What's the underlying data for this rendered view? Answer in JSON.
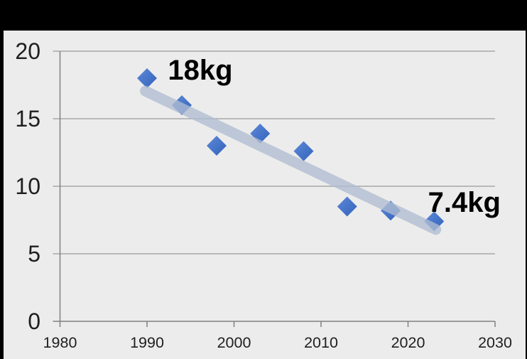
{
  "chart_data": {
    "type": "scatter",
    "title": "",
    "xlabel": "",
    "ylabel": "",
    "xlim": [
      1980,
      2030
    ],
    "ylim": [
      0,
      20
    ],
    "x_ticks": [
      1980,
      1990,
      2000,
      2010,
      2020,
      2030
    ],
    "y_ticks": [
      0,
      5,
      10,
      15,
      20
    ],
    "grid": true,
    "legend": "none",
    "series": [
      {
        "name": "values-kg",
        "marker": "diamond",
        "points": [
          {
            "x": 1990,
            "y": 18
          },
          {
            "x": 1994,
            "y": 16
          },
          {
            "x": 1998,
            "y": 13
          },
          {
            "x": 2003,
            "y": 13.9
          },
          {
            "x": 2008,
            "y": 12.6
          },
          {
            "x": 2013,
            "y": 8.5
          },
          {
            "x": 2018,
            "y": 8.2
          },
          {
            "x": 2023,
            "y": 7.4
          }
        ]
      }
    ],
    "trendline": {
      "x1": 1989.8,
      "y1": 17.05,
      "x2": 2023.2,
      "y2": 6.8
    },
    "annotations": [
      {
        "text": "18kg",
        "x": 1992.4,
        "y": 17.9,
        "anchor": "start"
      },
      {
        "text": "7.4kg",
        "x": 2022.3,
        "y": 8.1,
        "anchor": "start"
      }
    ],
    "colors": {
      "frame": "#000000",
      "plot_background": "#ECECEC",
      "gridline": "#9A9A9A",
      "axis": "#808080",
      "tick_label": "#1F1F1F",
      "annotation": "#000000",
      "marker": "#4472C4",
      "marker_gradient_start": "#5D89D8",
      "marker_gradient_end": "#3262BA",
      "trendline": "#AFBDD1",
      "trendline_opacity": 0.78
    }
  }
}
